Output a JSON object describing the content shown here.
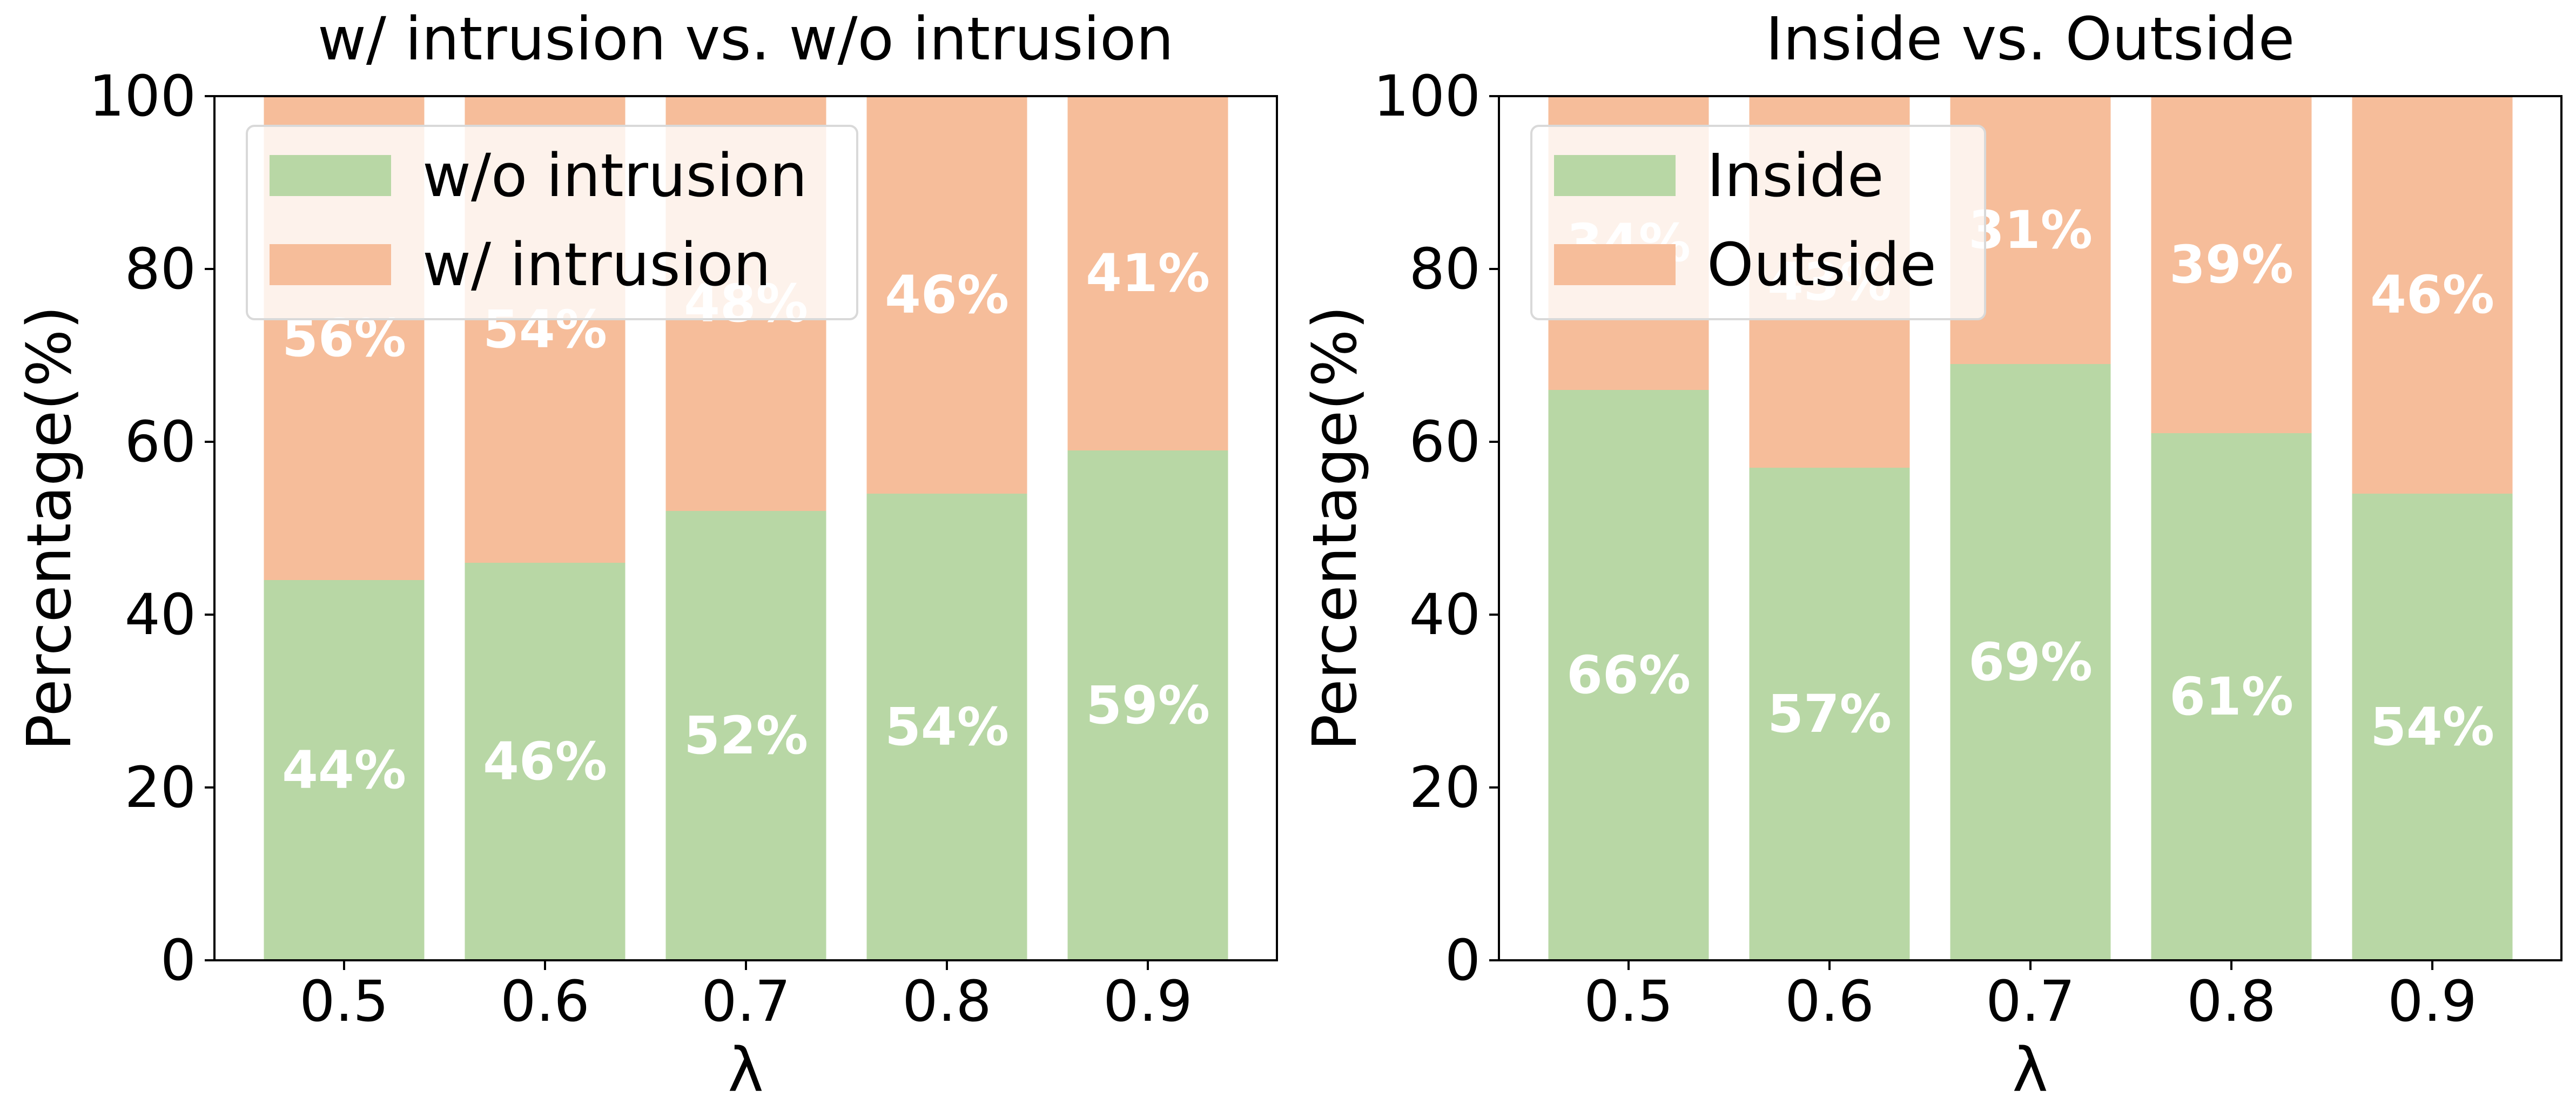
{
  "chart_data": [
    {
      "type": "bar",
      "stacked": true,
      "title": "w/ intrusion vs. w/o intrusion",
      "xlabel": "λ",
      "ylabel": "Percentage(%)",
      "categories": [
        "0.5",
        "0.6",
        "0.7",
        "0.8",
        "0.9"
      ],
      "ylim": [
        0,
        100
      ],
      "yticks": [
        "0",
        "20",
        "40",
        "60",
        "80",
        "100"
      ],
      "legend_position": "upper-left",
      "series": [
        {
          "name": "w/o intrusion",
          "color": "#b8d7a5",
          "values": [
            44,
            46,
            52,
            54,
            59
          ],
          "labels": [
            "44%",
            "46%",
            "52%",
            "54%",
            "59%"
          ]
        },
        {
          "name": "w/ intrusion",
          "color": "#f6bd9a",
          "values": [
            56,
            54,
            48,
            46,
            41
          ],
          "labels": [
            "56%",
            "54%",
            "48%",
            "46%",
            "41%"
          ]
        }
      ]
    },
    {
      "type": "bar",
      "stacked": true,
      "title": "Inside vs. Outside",
      "xlabel": "λ",
      "ylabel": "Percentage(%)",
      "categories": [
        "0.5",
        "0.6",
        "0.7",
        "0.8",
        "0.9"
      ],
      "ylim": [
        0,
        100
      ],
      "yticks": [
        "0",
        "20",
        "40",
        "60",
        "80",
        "100"
      ],
      "legend_position": "upper-left",
      "series": [
        {
          "name": "Inside",
          "color": "#b8d7a5",
          "values": [
            66,
            57,
            69,
            61,
            54
          ],
          "labels": [
            "66%",
            "57%",
            "69%",
            "61%",
            "54%"
          ]
        },
        {
          "name": "Outside",
          "color": "#f6bd9a",
          "values": [
            34,
            43,
            31,
            39,
            46
          ],
          "labels": [
            "34%",
            "43%",
            "31%",
            "39%",
            "46%"
          ]
        }
      ]
    }
  ]
}
